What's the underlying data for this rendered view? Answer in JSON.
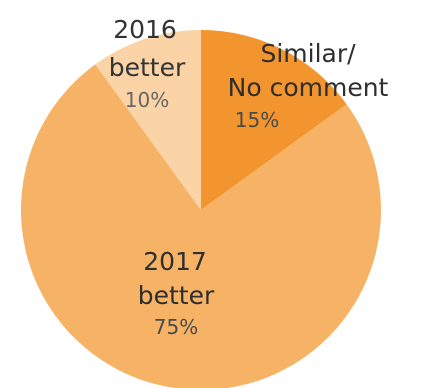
{
  "chart_data": {
    "type": "pie",
    "slices": [
      {
        "label_lines": [
          "Similar/",
          "No comment"
        ],
        "percent_label": "15%",
        "value": 15,
        "color": "#F3952F"
      },
      {
        "label_lines": [
          "2017",
          "better"
        ],
        "percent_label": "75%",
        "value": 75,
        "color": "#F7B365"
      },
      {
        "label_lines": [
          "2016",
          "better"
        ],
        "percent_label": "10%",
        "value": 10,
        "color": "#FAD3A6"
      }
    ],
    "start": "12 o'clock",
    "direction": "clockwise",
    "legend": "none"
  }
}
